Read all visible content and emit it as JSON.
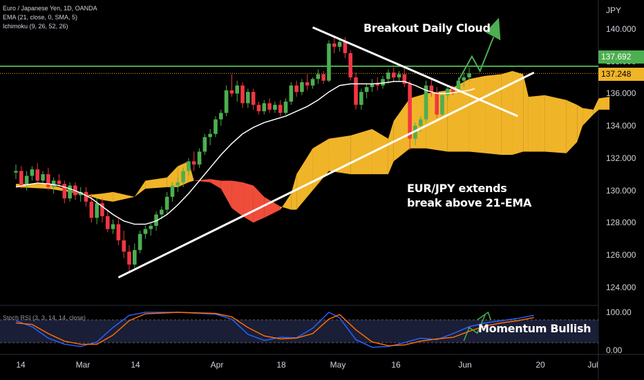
{
  "legend": {
    "symbol": "Euro / Japanese Yen, 1D, OANDA",
    "ema": "EMA (21, close, 0, SMA, 5)",
    "ichimoku": "Ichimoku (9, 26, 52, 26)",
    "stoch": "Stoch RSI (3, 3, 14, 14, close)"
  },
  "annotations": {
    "title": "Breakout Daily Cloud",
    "ema_line1": "EUR/JPY extends",
    "ema_line2": "break above 21-EMA",
    "momentum": "Momentum Bullish"
  },
  "axis": {
    "currency": "JPY",
    "y_ticks": [
      "140.000",
      "138.000",
      "136.000",
      "134.000",
      "132.000",
      "130.000",
      "128.000",
      "126.000",
      "124.000"
    ],
    "stoch_ticks": [
      "100.00",
      "0.00"
    ],
    "x_ticks": [
      "14",
      "Mar",
      "14",
      "Apr",
      "18",
      "May",
      "16",
      "Jun",
      "20",
      "Jul"
    ]
  },
  "price_tags": {
    "level": "137.692",
    "last": "137.248"
  },
  "colors": {
    "up": "#4caf50",
    "down": "#f23645",
    "cloud_bull": "#f0b429",
    "cloud_bear": "#ef4d3a",
    "ema": "#ffffff",
    "level_line": "#4caf50",
    "stoch_k": "#2962ff",
    "stoch_d": "#ff6d00",
    "trendline": "#ffffff"
  },
  "chart_data": {
    "type": "candlestick",
    "ylim": [
      123.2,
      141.8
    ],
    "x_range_days": [
      -5,
      131
    ],
    "horizontal_level": 137.692,
    "last_price": 137.248,
    "candles": [
      [
        131.1,
        131.6,
        130.7,
        131.2
      ],
      [
        131.2,
        131.5,
        130.1,
        130.3
      ],
      [
        130.3,
        131.2,
        130.0,
        130.9
      ],
      [
        130.9,
        131.5,
        130.6,
        131.3
      ],
      [
        131.3,
        131.7,
        130.5,
        130.6
      ],
      [
        130.6,
        131.2,
        130.4,
        131.0
      ],
      [
        131.0,
        131.4,
        130.0,
        130.2
      ],
      [
        130.2,
        130.8,
        129.8,
        130.6
      ],
      [
        130.6,
        131.0,
        130.2,
        130.4
      ],
      [
        130.4,
        130.6,
        129.2,
        129.5
      ],
      [
        129.5,
        130.5,
        129.3,
        130.3
      ],
      [
        130.3,
        130.5,
        129.4,
        129.7
      ],
      [
        129.7,
        130.2,
        129.3,
        129.9
      ],
      [
        129.9,
        130.2,
        129.0,
        129.3
      ],
      [
        129.3,
        129.8,
        128.0,
        128.3
      ],
      [
        128.3,
        129.5,
        127.9,
        129.2
      ],
      [
        129.2,
        129.5,
        128.0,
        128.4
      ],
      [
        128.4,
        128.8,
        127.4,
        127.6
      ],
      [
        127.6,
        128.2,
        127.3,
        127.9
      ],
      [
        127.9,
        128.3,
        126.6,
        126.9
      ],
      [
        126.9,
        127.5,
        125.8,
        126.2
      ],
      [
        126.2,
        126.6,
        125.0,
        125.4
      ],
      [
        125.4,
        126.7,
        125.2,
        126.3
      ],
      [
        126.3,
        127.5,
        126.1,
        127.3
      ],
      [
        127.3,
        127.8,
        127.0,
        127.6
      ],
      [
        127.6,
        128.0,
        127.2,
        127.8
      ],
      [
        127.8,
        128.7,
        127.5,
        128.5
      ],
      [
        128.5,
        129.0,
        128.2,
        128.8
      ],
      [
        128.8,
        129.9,
        128.5,
        129.6
      ],
      [
        129.6,
        130.5,
        129.3,
        130.3
      ],
      [
        130.3,
        130.8,
        129.9,
        130.5
      ],
      [
        130.5,
        131.4,
        130.2,
        131.2
      ],
      [
        131.2,
        132.0,
        130.9,
        131.8
      ],
      [
        131.8,
        132.4,
        131.2,
        131.6
      ],
      [
        131.6,
        132.6,
        131.4,
        132.4
      ],
      [
        132.4,
        133.5,
        132.2,
        133.3
      ],
      [
        133.3,
        133.8,
        132.8,
        133.5
      ],
      [
        133.5,
        134.6,
        133.3,
        134.4
      ],
      [
        134.4,
        135.0,
        134.0,
        134.8
      ],
      [
        134.8,
        136.5,
        134.6,
        136.2
      ],
      [
        136.2,
        137.2,
        135.8,
        136.0
      ],
      [
        136.0,
        136.8,
        135.5,
        136.5
      ],
      [
        136.5,
        136.7,
        135.1,
        135.4
      ],
      [
        135.4,
        136.3,
        135.1,
        136.1
      ],
      [
        136.1,
        136.3,
        135.0,
        135.3
      ],
      [
        135.3,
        135.5,
        134.7,
        134.9
      ],
      [
        134.9,
        135.6,
        134.7,
        135.4
      ],
      [
        135.4,
        135.7,
        134.8,
        135.0
      ],
      [
        135.0,
        135.5,
        134.8,
        135.3
      ],
      [
        135.3,
        135.6,
        134.6,
        134.8
      ],
      [
        134.8,
        135.7,
        134.7,
        135.5
      ],
      [
        135.5,
        136.7,
        135.3,
        136.5
      ],
      [
        136.5,
        136.8,
        135.8,
        136.1
      ],
      [
        136.1,
        136.9,
        135.9,
        136.7
      ],
      [
        136.7,
        137.2,
        136.2,
        136.5
      ],
      [
        136.5,
        137.0,
        136.3,
        136.9
      ],
      [
        136.9,
        137.5,
        136.6,
        137.2
      ],
      [
        137.2,
        137.4,
        136.6,
        136.8
      ],
      [
        136.8,
        139.3,
        136.7,
        139.1
      ],
      [
        139.1,
        139.6,
        138.5,
        138.9
      ],
      [
        138.9,
        139.4,
        138.6,
        139.2
      ],
      [
        139.2,
        139.5,
        138.2,
        138.5
      ],
      [
        138.5,
        138.7,
        136.8,
        137.0
      ],
      [
        137.0,
        137.3,
        135.0,
        135.3
      ],
      [
        135.3,
        136.3,
        135.0,
        136.1
      ],
      [
        136.1,
        136.6,
        135.7,
        136.4
      ],
      [
        136.4,
        136.9,
        136.1,
        136.6
      ],
      [
        136.6,
        137.0,
        136.2,
        136.5
      ],
      [
        136.5,
        137.1,
        136.3,
        136.9
      ],
      [
        136.9,
        137.5,
        136.6,
        137.3
      ],
      [
        137.3,
        137.6,
        136.7,
        137.0
      ],
      [
        137.0,
        137.4,
        136.8,
        137.2
      ],
      [
        137.2,
        137.6,
        136.4,
        136.6
      ],
      [
        136.6,
        136.8,
        132.5,
        133.2
      ],
      [
        133.2,
        134.2,
        132.8,
        134.0
      ],
      [
        134.0,
        134.6,
        133.6,
        134.4
      ],
      [
        134.4,
        136.8,
        134.2,
        136.5
      ],
      [
        136.5,
        136.9,
        135.8,
        136.1
      ],
      [
        136.1,
        136.4,
        134.5,
        134.7
      ],
      [
        134.7,
        136.0,
        134.5,
        135.9
      ],
      [
        135.9,
        136.4,
        135.6,
        136.3
      ],
      [
        136.3,
        136.5,
        135.9,
        136.1
      ],
      [
        136.1,
        137.0,
        136.0,
        136.8
      ],
      [
        136.8,
        137.3,
        136.4,
        137.0
      ],
      [
        137.0,
        137.6,
        136.8,
        137.25
      ]
    ],
    "ema": [
      [
        0,
        130.2
      ],
      [
        2,
        130.35
      ],
      [
        4,
        130.45
      ],
      [
        6,
        130.4
      ],
      [
        8,
        130.3
      ],
      [
        10,
        130.1
      ],
      [
        12,
        129.85
      ],
      [
        14,
        129.5
      ],
      [
        16,
        129.0
      ],
      [
        18,
        128.5
      ],
      [
        20,
        128.1
      ],
      [
        22,
        127.9
      ],
      [
        24,
        127.9
      ],
      [
        26,
        128.1
      ],
      [
        28,
        128.5
      ],
      [
        30,
        129.1
      ],
      [
        32,
        129.8
      ],
      [
        34,
        130.6
      ],
      [
        36,
        131.4
      ],
      [
        38,
        132.2
      ],
      [
        40,
        132.9
      ],
      [
        42,
        133.5
      ],
      [
        44,
        133.9
      ],
      [
        46,
        134.2
      ],
      [
        48,
        134.4
      ],
      [
        50,
        134.6
      ],
      [
        52,
        134.9
      ],
      [
        54,
        135.2
      ],
      [
        56,
        135.6
      ],
      [
        58,
        136.1
      ],
      [
        60,
        136.5
      ],
      [
        62,
        136.6
      ],
      [
        64,
        136.6
      ],
      [
        66,
        136.6
      ],
      [
        68,
        136.65
      ],
      [
        70,
        136.75
      ],
      [
        72,
        136.75
      ],
      [
        74,
        136.5
      ],
      [
        76,
        136.2
      ],
      [
        78,
        136.0
      ],
      [
        80,
        136.0
      ],
      [
        82,
        136.1
      ],
      [
        84,
        136.2
      ],
      [
        85,
        136.3
      ]
    ],
    "cloud": [
      [
        0,
        130.4,
        130.2
      ],
      [
        6,
        130.4,
        130.1
      ],
      [
        10,
        130.0,
        129.9
      ],
      [
        13,
        129.7,
        129.7
      ],
      [
        16,
        129.8,
        129.4
      ],
      [
        18,
        129.9,
        129.3
      ],
      [
        22,
        129.6,
        129.6
      ],
      [
        24,
        130.6,
        130.1
      ],
      [
        28,
        130.8,
        130.2
      ],
      [
        30,
        131.5,
        130.2
      ],
      [
        32,
        131.8,
        130.5
      ],
      [
        33,
        130.6,
        130.6
      ],
      [
        36,
        130.5,
        130.7
      ],
      [
        38,
        130.1,
        130.6
      ],
      [
        40,
        128.9,
        130.6
      ],
      [
        42,
        128.4,
        130.5
      ],
      [
        44,
        128.0,
        130.3
      ],
      [
        46,
        128.3,
        129.6
      ],
      [
        49,
        128.8,
        129.0
      ],
      [
        51,
        129.8,
        128.8
      ],
      [
        52,
        131.0,
        128.8
      ],
      [
        55,
        132.6,
        130.0
      ],
      [
        58,
        133.2,
        131.2
      ],
      [
        62,
        133.4,
        131.0
      ],
      [
        66,
        133.8,
        131.0
      ],
      [
        69,
        133.2,
        131.0
      ],
      [
        70,
        134.3,
        131.8
      ],
      [
        73,
        135.7,
        132.6
      ],
      [
        76,
        136.0,
        132.6
      ],
      [
        80,
        136.2,
        132.4
      ],
      [
        84,
        136.9,
        132.4
      ],
      [
        87,
        137.1,
        132.3
      ],
      [
        90,
        137.2,
        132.2
      ],
      [
        92,
        137.4,
        132.2
      ],
      [
        94,
        137.2,
        132.4
      ],
      [
        95,
        135.8,
        132.4
      ],
      [
        98,
        135.9,
        132.4
      ],
      [
        102,
        135.6,
        132.3
      ],
      [
        104,
        135.3,
        133.0
      ],
      [
        105,
        135.1,
        134.0
      ],
      [
        107,
        135.0,
        134.7
      ],
      [
        108,
        135.7,
        135.0
      ],
      [
        110,
        135.8,
        135.0
      ]
    ],
    "stoch": {
      "ylim": [
        0,
        100
      ],
      "k": [
        [
          0,
          78
        ],
        [
          3,
          62
        ],
        [
          6,
          32
        ],
        [
          9,
          16
        ],
        [
          12,
          10
        ],
        [
          15,
          22
        ],
        [
          18,
          60
        ],
        [
          21,
          92
        ],
        [
          24,
          100
        ],
        [
          30,
          100
        ],
        [
          37,
          95
        ],
        [
          40,
          82
        ],
        [
          43,
          42
        ],
        [
          46,
          26
        ],
        [
          49,
          34
        ],
        [
          52,
          33
        ],
        [
          55,
          58
        ],
        [
          58,
          100
        ],
        [
          60,
          85
        ],
        [
          63,
          28
        ],
        [
          66,
          8
        ],
        [
          69,
          10
        ],
        [
          72,
          20
        ],
        [
          75,
          32
        ],
        [
          78,
          28
        ],
        [
          81,
          44
        ],
        [
          84,
          62
        ],
        [
          87,
          72
        ],
        [
          90,
          78
        ],
        [
          93,
          84
        ],
        [
          96,
          92
        ]
      ],
      "d": [
        [
          0,
          72
        ],
        [
          3,
          68
        ],
        [
          6,
          44
        ],
        [
          9,
          24
        ],
        [
          12,
          16
        ],
        [
          15,
          16
        ],
        [
          18,
          40
        ],
        [
          21,
          78
        ],
        [
          24,
          96
        ],
        [
          30,
          100
        ],
        [
          37,
          97
        ],
        [
          40,
          88
        ],
        [
          43,
          60
        ],
        [
          46,
          38
        ],
        [
          49,
          30
        ],
        [
          52,
          32
        ],
        [
          55,
          44
        ],
        [
          58,
          82
        ],
        [
          60,
          94
        ],
        [
          63,
          54
        ],
        [
          66,
          22
        ],
        [
          69,
          12
        ],
        [
          72,
          14
        ],
        [
          75,
          24
        ],
        [
          78,
          30
        ],
        [
          81,
          34
        ],
        [
          84,
          50
        ],
        [
          87,
          64
        ],
        [
          90,
          72
        ],
        [
          93,
          78
        ],
        [
          96,
          86
        ]
      ]
    },
    "x_tick_days": [
      0,
      12,
      28,
      43,
      62,
      76,
      94,
      104,
      122,
      131
    ]
  }
}
